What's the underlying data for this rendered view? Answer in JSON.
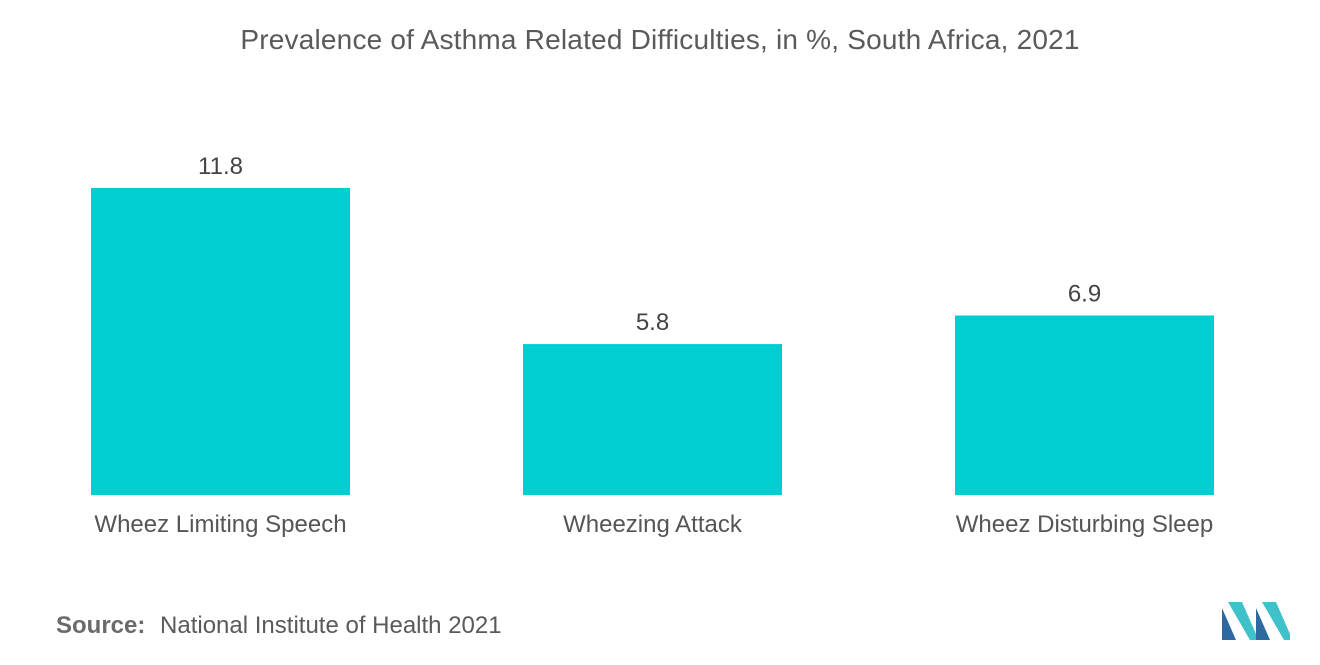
{
  "title": "Prevalence of Asthma Related Difficulties, in %, South Africa, 2021",
  "source": {
    "label": "Source:",
    "text": "National Institute of Health 2021"
  },
  "colors": {
    "bar": "#00ced1",
    "text": "#555555",
    "logo_dark": "#2d6a9f",
    "logo_light": "#3ec1c9"
  },
  "logo_icon": "mordor-intelligence-logo",
  "chart_data": {
    "type": "bar",
    "title": "Prevalence of Asthma Related Difficulties, in %, South Africa, 2021",
    "categories": [
      "Wheez Limiting Speech",
      "Wheezing Attack",
      "Wheez Disturbing Sleep"
    ],
    "values": [
      11.8,
      5.8,
      6.9
    ],
    "value_labels": [
      "11.8",
      "5.8",
      "6.9"
    ],
    "xlabel": "",
    "ylabel": "",
    "ylim": [
      0,
      11.8
    ],
    "grid": false,
    "legend": "none"
  }
}
